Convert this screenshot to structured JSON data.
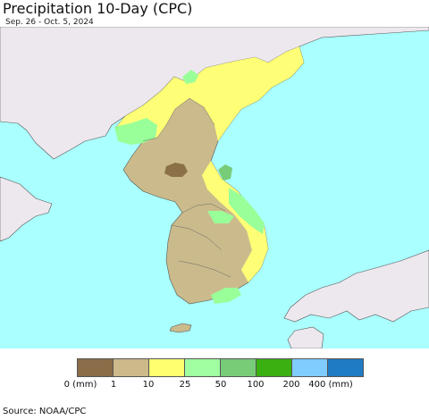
{
  "title": "Precipitation 10-Day (CPC)",
  "date_range": "Sep. 26 - Oct. 5, 2024",
  "source": "Source: NOAA/CPC",
  "colors": {
    "sea": "#aaffff",
    "foreign_land": "#ede8ee",
    "brown": "#8b7048",
    "tan": "#c8b88a",
    "yellow": "#ffff77",
    "light_green": "#99ff99",
    "medium_green": "#77cc77"
  },
  "legend": {
    "bins": [
      {
        "color": "#8b6d4a"
      },
      {
        "color": "#cdb98a"
      },
      {
        "color": "#ffff70"
      },
      {
        "color": "#a0ffa0"
      },
      {
        "color": "#78cc78"
      },
      {
        "color": "#3ab012"
      },
      {
        "color": "#80ccff"
      },
      {
        "color": "#1e7bc4"
      }
    ],
    "labels": [
      "0 (mm)",
      "1",
      "10",
      "25",
      "50",
      "100",
      "200",
      "400 (mm)"
    ]
  }
}
